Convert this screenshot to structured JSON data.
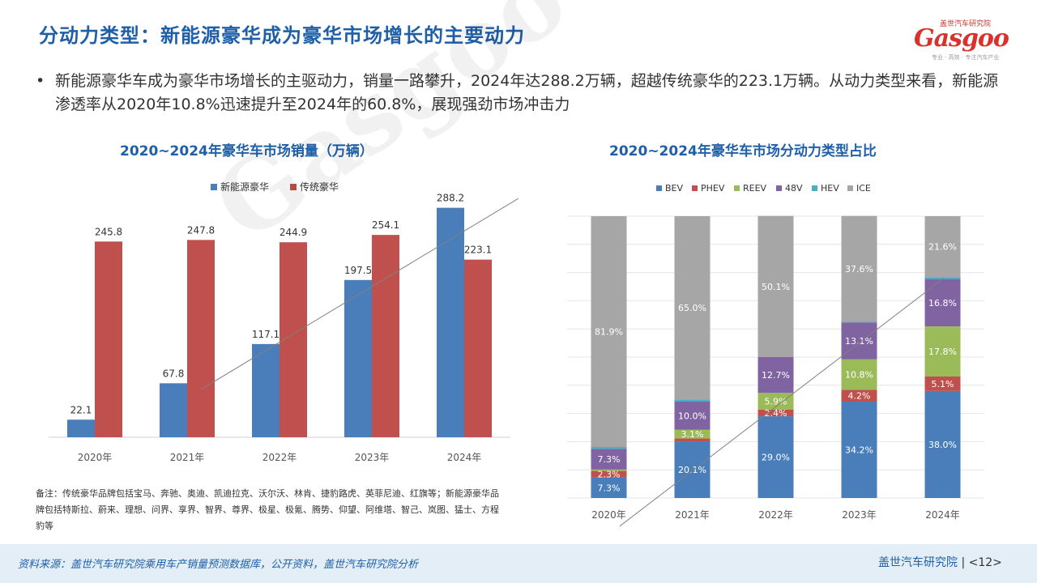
{
  "header": {
    "title": "分动力类型：新能源豪华成为豪华市场增长的主要动力",
    "logo_caption": "盖世汽车研究院",
    "logo_word": "Gasgoo",
    "logo_subtitle": "专业 · 高效 · 专注汽车产业"
  },
  "bullet": {
    "dot": "•",
    "text": "新能源豪华车成为豪华市场增长的主驱动力，销量一路攀升，2024年达288.2万辆，超越传统豪华的223.1万辆。从动力类型来看，新能源渗透率从2020年10.8%迅速提升至2024年的60.8%，展现强劲市场冲击力"
  },
  "note": {
    "text": "备注：传统豪华品牌包括宝马、奔驰、奥迪、凯迪拉克、沃尔沃、林肯、捷豹路虎、英菲尼迪、红旗等；新能源豪华品牌包括特斯拉、蔚来、理想、问界、享界、智界、尊界、极星、极氪、腾势、仰望、阿维塔、智己、岚图、猛士、方程豹等"
  },
  "footer": {
    "source": "资料来源：盖世汽车研究院乘用车产销量预测数据库，公开资料，盖世汽车研究院分析",
    "brand": "盖世汽车研究院",
    "page": "<12>"
  },
  "watermark": "Gasgoo",
  "colors": {
    "accent": "#1f5fa8",
    "nev": "#4a7ebb",
    "traditional": "#c0504d",
    "BEV": "#4a7ebb",
    "PHEV": "#c0504d",
    "REEV": "#9bbb59",
    "48V": "#8064a2",
    "HEV": "#4bacc6",
    "ICE": "#a6a6a6"
  },
  "chart_data": [
    {
      "type": "bar",
      "title": "2020~2024年豪华车市场销量（万辆）",
      "categories": [
        "2020年",
        "2021年",
        "2022年",
        "2023年",
        "2024年"
      ],
      "series": [
        {
          "name": "新能源豪华",
          "values": [
            22.1,
            67.8,
            117.1,
            197.5,
            288.2
          ],
          "labels": [
            "22.1",
            "67.8",
            "117.1",
            "197.5",
            "288.2"
          ]
        },
        {
          "name": "传统豪华",
          "values": [
            245.8,
            247.8,
            244.9,
            254.1,
            223.1
          ],
          "labels": [
            "245.8",
            "247.8",
            "244.9",
            "254.1",
            "223.1"
          ]
        }
      ],
      "ylim": [
        0,
        300
      ],
      "legend": "top-center"
    },
    {
      "type": "bar",
      "stacked": true,
      "title": "2020~2024年豪华车市场分动力类型占比",
      "categories": [
        "2020年",
        "2021年",
        "2022年",
        "2023年",
        "2024年"
      ],
      "series": [
        {
          "name": "BEV",
          "values": [
            7.3,
            20.1,
            29.0,
            34.2,
            38.0
          ],
          "labels": [
            "7.3%",
            "20.1%",
            "29.0%",
            "34.2%",
            "38.0%"
          ]
        },
        {
          "name": "PHEV",
          "values": [
            2.3,
            1.0,
            2.4,
            4.2,
            5.1
          ],
          "labels": [
            "2.3%",
            "",
            "2.4%",
            "4.2%",
            "5.1%"
          ]
        },
        {
          "name": "REEV",
          "values": [
            0.5,
            3.1,
            5.9,
            10.8,
            17.8
          ],
          "labels": [
            "",
            "3.1%",
            "5.9%",
            "10.8%",
            "17.8%"
          ]
        },
        {
          "name": "48V",
          "values": [
            7.3,
            10.0,
            12.7,
            13.1,
            16.8
          ],
          "labels": [
            "7.3%",
            "10.0%",
            "12.7%",
            "13.1%",
            "16.8%"
          ]
        },
        {
          "name": "HEV",
          "values": [
            0.7,
            0.8,
            0.0,
            0.2,
            0.7
          ],
          "labels": [
            "",
            "",
            "",
            "",
            ""
          ]
        },
        {
          "name": "ICE",
          "values": [
            81.9,
            65.0,
            50.1,
            37.6,
            21.6
          ],
          "labels": [
            "81.9%",
            "65.0%",
            "50.1%",
            "37.6%",
            "21.6%"
          ]
        }
      ],
      "ylim": [
        0,
        100
      ],
      "grid": true,
      "legend": "top-center"
    }
  ]
}
